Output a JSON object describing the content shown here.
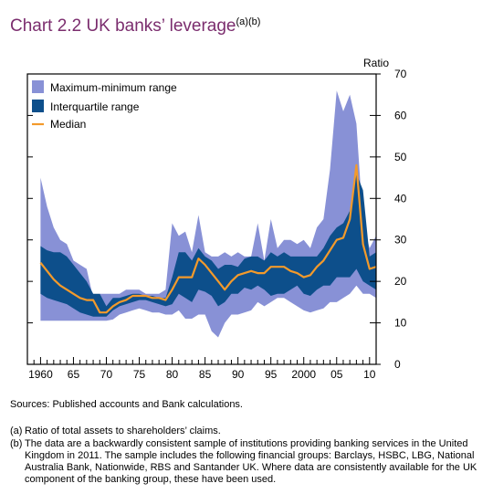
{
  "header": {
    "chart_number": "Chart 2.2",
    "title": "UK banks’ leverage",
    "title_superscript": "(a)(b)"
  },
  "chart_data": {
    "type": "area",
    "title": "UK banks’ leverage",
    "ylabel": "Ratio",
    "xlabel": "",
    "ylim": [
      0,
      70
    ],
    "xlim": [
      1958,
      2011
    ],
    "y_ticks": [
      "0",
      "10",
      "20",
      "30",
      "40",
      "50",
      "60",
      "70"
    ],
    "x_tick_labels": [
      {
        "x": 1960,
        "label": "1960"
      },
      {
        "x": 1965,
        "label": "65"
      },
      {
        "x": 1970,
        "label": "70"
      },
      {
        "x": 1975,
        "label": "75"
      },
      {
        "x": 1980,
        "label": "80"
      },
      {
        "x": 1985,
        "label": "85"
      },
      {
        "x": 1990,
        "label": "90"
      },
      {
        "x": 1995,
        "label": "95"
      },
      {
        "x": 2000,
        "label": "2000"
      },
      {
        "x": 2005,
        "label": "05"
      },
      {
        "x": 2010,
        "label": "10"
      }
    ],
    "grid": false,
    "legend_position": "top-left",
    "colors": {
      "range": "#8891d6",
      "iqr": "#0d4f8b",
      "median": "#f39a2b",
      "title": "#7b2d6e"
    },
    "x": [
      1960,
      1961,
      1962,
      1963,
      1964,
      1965,
      1966,
      1967,
      1968,
      1969,
      1970,
      1971,
      1972,
      1973,
      1974,
      1975,
      1976,
      1977,
      1978,
      1979,
      1980,
      1981,
      1982,
      1983,
      1984,
      1985,
      1986,
      1987,
      1988,
      1989,
      1990,
      1991,
      1992,
      1993,
      1994,
      1995,
      1996,
      1997,
      1998,
      1999,
      2000,
      2001,
      2002,
      2003,
      2004,
      2005,
      2006,
      2007,
      2008,
      2009,
      2010,
      2011
    ],
    "series": [
      {
        "name": "Maximum-minimum range",
        "role": "max",
        "values": [
          45,
          38,
          33,
          30,
          29,
          25,
          24,
          23,
          16,
          17,
          17,
          17,
          17,
          18,
          18,
          18,
          17,
          17,
          17,
          18,
          34,
          31,
          32,
          27,
          36,
          27,
          26,
          26,
          27,
          26,
          27,
          26,
          26,
          34,
          25,
          35,
          28,
          30,
          30,
          29,
          30,
          28,
          33,
          35,
          47,
          66,
          61,
          65,
          58,
          34,
          28,
          31
        ]
      },
      {
        "name": "Maximum-minimum range",
        "role": "min",
        "values": [
          10.5,
          10.5,
          10.5,
          10.5,
          10.5,
          10.5,
          10.5,
          10.5,
          10.5,
          10.5,
          10.5,
          10.8,
          12,
          12.5,
          13,
          13.5,
          13,
          12.5,
          12.5,
          12,
          12,
          13,
          11,
          11,
          12,
          12,
          8,
          6.5,
          10,
          12,
          12,
          12.5,
          13,
          15,
          14,
          15,
          16,
          16,
          15,
          14,
          13,
          12.5,
          13,
          13.5,
          15,
          15,
          16,
          17,
          19,
          17,
          17,
          16
        ]
      },
      {
        "name": "Interquartile range",
        "role": "q3",
        "values": [
          28.5,
          27.5,
          27,
          27,
          26,
          24,
          22,
          20,
          17,
          17,
          14,
          16,
          16,
          16.5,
          17,
          17,
          16.5,
          16.5,
          16,
          16,
          21,
          27,
          27,
          25,
          28,
          26,
          25,
          23,
          24,
          24,
          23.5,
          25.5,
          26,
          26,
          25,
          27,
          26,
          27,
          26,
          26,
          26,
          26,
          26,
          28,
          31,
          33,
          34,
          37,
          46,
          42,
          26,
          27
        ]
      },
      {
        "name": "Interquartile range",
        "role": "q1",
        "values": [
          17,
          16,
          15.5,
          15,
          14.5,
          13.5,
          12.5,
          12,
          11.5,
          11.5,
          11.5,
          13,
          14,
          14.5,
          15,
          15.5,
          15.5,
          15,
          14.5,
          14,
          14.5,
          17,
          16,
          15,
          18,
          17.5,
          16.5,
          14,
          15,
          17,
          17,
          18.5,
          18,
          19,
          18,
          16.5,
          17,
          17,
          18,
          19,
          17,
          16.5,
          18,
          19,
          19,
          21,
          21,
          21,
          23,
          20,
          19,
          18
        ]
      },
      {
        "name": "Median",
        "role": "median",
        "values": [
          24.5,
          22.5,
          20.5,
          19,
          18,
          17,
          16,
          15.5,
          15.5,
          12.5,
          12.5,
          14,
          15,
          15.5,
          16.5,
          16.5,
          16.5,
          16,
          16,
          15.5,
          18,
          21,
          21,
          21,
          25.5,
          24,
          22,
          20,
          18,
          20,
          21.5,
          22,
          22.5,
          22,
          22,
          23.5,
          23.5,
          23.5,
          22.5,
          22,
          21,
          21.5,
          23.5,
          25,
          27.5,
          30,
          30.5,
          35,
          48,
          29,
          23,
          23.5
        ]
      }
    ]
  },
  "legend": {
    "range_label": "Maximum-minimum range",
    "iqr_label": "Interquartile range",
    "median_label": "Median"
  },
  "footer": {
    "sources": "Sources:  Published accounts and Bank calculations.",
    "notes": [
      {
        "label": "(a)",
        "text": "Ratio of total assets to shareholders’ claims."
      },
      {
        "label": "(b)",
        "text": "The data are a backwardly consistent sample of institutions providing banking services in the United Kingdom in 2011.  The sample includes the following financial groups:  Barclays, HSBC, LBG, National Australia Bank, Nationwide, RBS and Santander UK.  Where data are consistently available for the UK component of the banking group, these have been used."
      }
    ]
  }
}
